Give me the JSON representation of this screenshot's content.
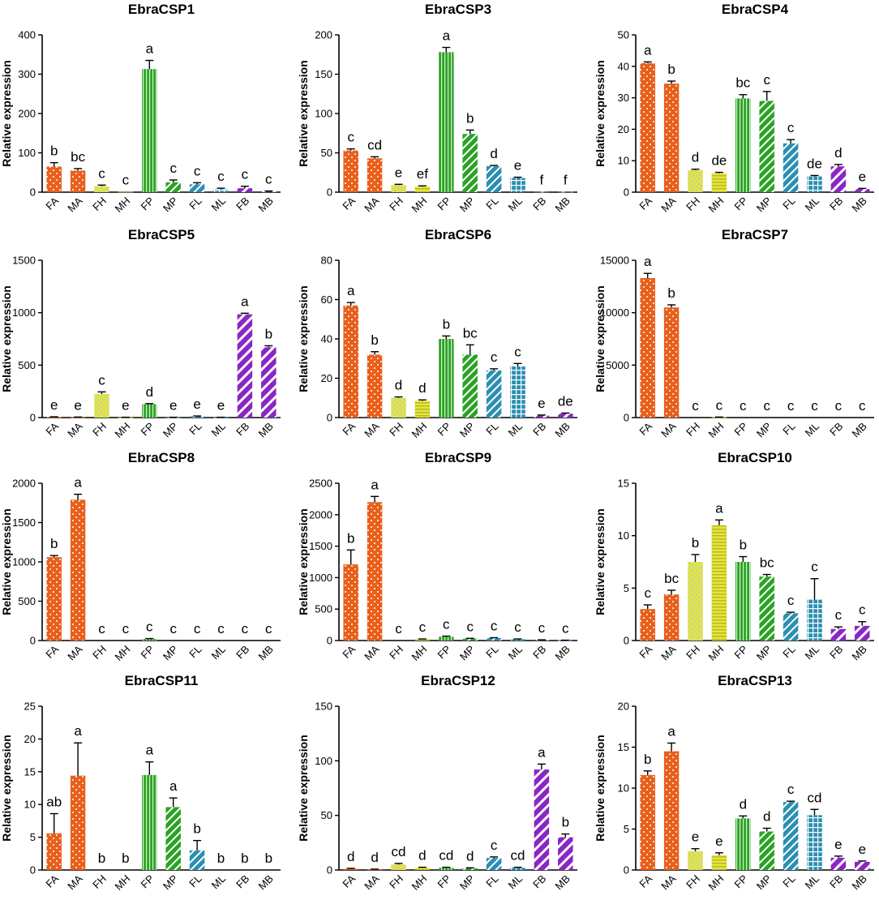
{
  "figure": {
    "ylabel": "Relative expression"
  },
  "colors": {
    "orange": "#e8601c",
    "yellow": "#e6e635",
    "green": "#2aa323",
    "blue": "#2b8fb0",
    "purple": "#8a26c4",
    "axis": "#000000"
  },
  "chart_data": [
    {
      "type": "bar",
      "title": "EbraCSP1",
      "ylabel": "Relative expression",
      "ylim": [
        0,
        400
      ],
      "yticks": [
        0,
        100,
        200,
        300,
        400
      ],
      "categories": [
        "FA",
        "MA",
        "FH",
        "MH",
        "FP",
        "MP",
        "FL",
        "ML",
        "FB",
        "MB"
      ],
      "values": [
        65,
        55,
        15,
        1,
        313,
        25,
        20,
        7,
        10,
        2
      ],
      "errors": [
        10,
        5,
        3,
        0,
        22,
        6,
        4,
        3,
        5,
        1
      ],
      "letters": [
        "b",
        "bc",
        "c",
        "c",
        "a",
        "c",
        "c",
        "c",
        "c",
        "c"
      ]
    },
    {
      "type": "bar",
      "title": "EbraCSP3",
      "ylabel": "Relative expression",
      "ylim": [
        0,
        200
      ],
      "yticks": [
        0,
        50,
        100,
        150,
        200
      ],
      "categories": [
        "FA",
        "MA",
        "FH",
        "MH",
        "FP",
        "MP",
        "FL",
        "ML",
        "FB",
        "MB"
      ],
      "values": [
        53,
        43,
        9,
        7,
        178,
        74,
        33,
        18,
        0.5,
        0.5
      ],
      "errors": [
        2,
        2,
        1,
        1,
        6,
        5,
        1,
        1,
        0,
        0
      ],
      "letters": [
        "c",
        "cd",
        "e",
        "ef",
        "a",
        "b",
        "d",
        "e",
        "f",
        "f"
      ]
    },
    {
      "type": "bar",
      "title": "EbraCSP4",
      "ylabel": "Relative expression",
      "ylim": [
        0,
        50
      ],
      "yticks": [
        0,
        10,
        20,
        30,
        40,
        50
      ],
      "categories": [
        "FA",
        "MA",
        "FH",
        "MH",
        "FP",
        "MP",
        "FL",
        "ML",
        "FB",
        "MB"
      ],
      "values": [
        41,
        34.5,
        7,
        6,
        29.8,
        29,
        15.5,
        5,
        8.2,
        1
      ],
      "errors": [
        0.4,
        0.8,
        0.3,
        0.3,
        1.2,
        3,
        1.2,
        0.3,
        0.6,
        0.2
      ],
      "letters": [
        "a",
        "b",
        "d",
        "de",
        "bc",
        "c",
        "c",
        "de",
        "d",
        "e"
      ]
    },
    {
      "type": "bar",
      "title": "EbraCSP5",
      "ylabel": "Relative expression",
      "ylim": [
        0,
        1500
      ],
      "yticks": [
        0,
        500,
        1000,
        1500
      ],
      "categories": [
        "FA",
        "MA",
        "FH",
        "MH",
        "FP",
        "MP",
        "FL",
        "ML",
        "FB",
        "MB"
      ],
      "values": [
        5,
        3,
        225,
        2,
        128,
        2,
        12,
        2,
        985,
        670
      ],
      "errors": [
        3,
        2,
        20,
        1,
        5,
        1,
        3,
        1,
        10,
        15
      ],
      "letters": [
        "e",
        "e",
        "c",
        "e",
        "d",
        "e",
        "e",
        "e",
        "a",
        "b"
      ]
    },
    {
      "type": "bar",
      "title": "EbraCSP6",
      "ylabel": "Relative expression",
      "ylim": [
        0,
        80
      ],
      "yticks": [
        0,
        20,
        40,
        60,
        80
      ],
      "categories": [
        "FA",
        "MA",
        "FH",
        "MH",
        "FP",
        "MP",
        "FL",
        "ML",
        "FB",
        "MB"
      ],
      "values": [
        57,
        32,
        10,
        8.5,
        40,
        32,
        24,
        26,
        1,
        2
      ],
      "errors": [
        1.5,
        1.5,
        0.5,
        0.5,
        1.5,
        5,
        0.8,
        1.5,
        0.3,
        0.3
      ],
      "letters": [
        "a",
        "b",
        "d",
        "d",
        "b",
        "bc",
        "c",
        "c",
        "e",
        "de"
      ]
    },
    {
      "type": "bar",
      "title": "EbraCSP7",
      "ylabel": "Relative expression",
      "ylim": [
        0,
        15000
      ],
      "yticks": [
        0,
        5000,
        10000,
        15000
      ],
      "categories": [
        "FA",
        "MA",
        "FH",
        "MH",
        "FP",
        "MP",
        "FL",
        "ML",
        "FB",
        "MB"
      ],
      "values": [
        13300,
        10500,
        0,
        40,
        0,
        0,
        0,
        0,
        0,
        0
      ],
      "errors": [
        450,
        250,
        0,
        10,
        0,
        0,
        0,
        0,
        0,
        0
      ],
      "letters": [
        "a",
        "b",
        "c",
        "c",
        "c",
        "c",
        "c",
        "c",
        "c",
        "c"
      ]
    },
    {
      "type": "bar",
      "title": "EbraCSP8",
      "ylabel": "Relative expression",
      "ylim": [
        0,
        2000
      ],
      "yticks": [
        0,
        500,
        1000,
        1500,
        2000
      ],
      "categories": [
        "FA",
        "MA",
        "FH",
        "MH",
        "FP",
        "MP",
        "FL",
        "ML",
        "FB",
        "MB"
      ],
      "values": [
        1060,
        1790,
        0,
        0,
        20,
        0,
        0,
        0,
        0,
        0
      ],
      "errors": [
        20,
        70,
        0,
        0,
        5,
        0,
        0,
        0,
        0,
        0
      ],
      "letters": [
        "b",
        "a",
        "c",
        "c",
        "c",
        "c",
        "c",
        "c",
        "c",
        "c"
      ]
    },
    {
      "type": "bar",
      "title": "EbraCSP9",
      "ylabel": "Relative expression",
      "ylim": [
        0,
        2500
      ],
      "yticks": [
        0,
        500,
        1000,
        1500,
        2000,
        2500
      ],
      "categories": [
        "FA",
        "MA",
        "FH",
        "MH",
        "FP",
        "MP",
        "FL",
        "ML",
        "FB",
        "MB"
      ],
      "values": [
        1210,
        2200,
        0,
        20,
        60,
        30,
        40,
        20,
        10,
        5
      ],
      "errors": [
        230,
        90,
        0,
        5,
        10,
        5,
        5,
        5,
        2,
        1
      ],
      "letters": [
        "b",
        "a",
        "c",
        "c",
        "c",
        "c",
        "c",
        "c",
        "c",
        "c"
      ]
    },
    {
      "type": "bar",
      "title": "EbraCSP10",
      "ylabel": "Relative expression",
      "ylim": [
        0,
        15
      ],
      "yticks": [
        0,
        5,
        10,
        15
      ],
      "categories": [
        "FA",
        "MA",
        "FH",
        "MH",
        "FP",
        "MP",
        "FL",
        "ML",
        "FB",
        "MB"
      ],
      "values": [
        3,
        4.4,
        7.5,
        11,
        7.5,
        6.1,
        2.6,
        3.9,
        1.1,
        1.4
      ],
      "errors": [
        0.4,
        0.4,
        0.7,
        0.5,
        0.5,
        0.2,
        0.1,
        2,
        0.2,
        0.4
      ],
      "letters": [
        "c",
        "bc",
        "b",
        "a",
        "b",
        "bc",
        "c",
        "c",
        "c",
        "c"
      ]
    },
    {
      "type": "bar",
      "title": "EbraCSP11",
      "ylabel": "Relative expression",
      "ylim": [
        0,
        25
      ],
      "yticks": [
        0,
        5,
        10,
        15,
        20,
        25
      ],
      "categories": [
        "FA",
        "MA",
        "FH",
        "MH",
        "FP",
        "MP",
        "FL",
        "ML",
        "FB",
        "MB"
      ],
      "values": [
        5.6,
        14.4,
        0,
        0,
        14.5,
        9.6,
        3,
        0,
        0,
        0
      ],
      "errors": [
        3,
        5,
        0,
        0,
        2,
        1.4,
        1.5,
        0,
        0,
        0
      ],
      "letters": [
        "ab",
        "a",
        "b",
        "b",
        "a",
        "a",
        "b",
        "b",
        "b",
        "b"
      ]
    },
    {
      "type": "bar",
      "title": "EbraCSP12",
      "ylabel": "Relative expression",
      "ylim": [
        0,
        150
      ],
      "yticks": [
        0,
        50,
        100,
        150
      ],
      "categories": [
        "FA",
        "MA",
        "FH",
        "MH",
        "FP",
        "MP",
        "FL",
        "ML",
        "FB",
        "MB"
      ],
      "values": [
        1,
        0.5,
        5,
        2,
        2,
        1.5,
        11,
        2,
        92,
        30
      ],
      "errors": [
        0.5,
        0.3,
        1,
        0.5,
        0.5,
        0.5,
        1,
        0.5,
        5,
        3
      ],
      "letters": [
        "d",
        "d",
        "cd",
        "d",
        "cd",
        "d",
        "c",
        "cd",
        "a",
        "b"
      ]
    },
    {
      "type": "bar",
      "title": "EbraCSP13",
      "ylabel": "Relative expression",
      "ylim": [
        0,
        20
      ],
      "yticks": [
        0,
        5,
        10,
        15,
        20
      ],
      "categories": [
        "FA",
        "MA",
        "FH",
        "MH",
        "FP",
        "MP",
        "FL",
        "ML",
        "FB",
        "MB"
      ],
      "values": [
        11.6,
        14.5,
        2.3,
        1.8,
        6.3,
        4.7,
        8.3,
        6.7,
        1.5,
        1
      ],
      "errors": [
        0.5,
        1,
        0.3,
        0.3,
        0.3,
        0.4,
        0.1,
        0.7,
        0.2,
        0.1
      ],
      "letters": [
        "b",
        "a",
        "e",
        "e",
        "d",
        "d",
        "c",
        "cd",
        "e",
        "e"
      ]
    }
  ]
}
